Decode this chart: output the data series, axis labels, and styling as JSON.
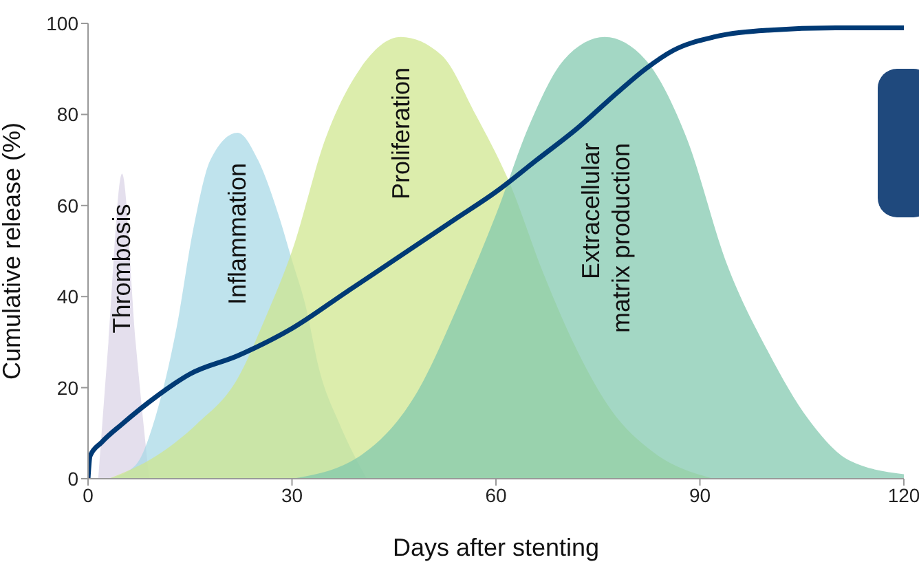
{
  "chart_data": {
    "type": "area",
    "xlabel": "Days after stenting",
    "ylabel": "Cumulative release (%)",
    "xlim": [
      0,
      120
    ],
    "xticks": [
      0,
      30,
      60,
      90,
      120
    ],
    "ylim": [
      0,
      100
    ],
    "yticks": [
      0,
      20,
      40,
      60,
      80,
      100
    ],
    "series": [
      {
        "name": "Thrombosis",
        "color": "#d9d3e6",
        "x": [
          1.5,
          3,
          5,
          7,
          9
        ],
        "values": [
          0,
          30,
          67,
          30,
          0
        ]
      },
      {
        "name": "Inflammation",
        "color": "#a6d8e6",
        "x": [
          3,
          7,
          10,
          13,
          15.5,
          18,
          22,
          25,
          28,
          30,
          32,
          34,
          37,
          41
        ],
        "values": [
          0,
          3,
          14,
          33,
          55,
          70,
          76,
          70,
          58,
          48,
          38,
          24,
          12,
          0
        ]
      },
      {
        "name": "Proliferation",
        "color": "#cfe68c",
        "x": [
          3,
          10,
          16,
          22,
          26,
          30,
          35,
          40,
          46,
          52,
          57,
          62,
          67,
          72,
          77,
          83,
          92
        ],
        "values": [
          0,
          5,
          12,
          22,
          35,
          50,
          75,
          90,
          97,
          93,
          80,
          65,
          45,
          28,
          15,
          6,
          0
        ]
      },
      {
        "name": "Extracellular matrix production",
        "color": "#7fc8ad",
        "x": [
          30,
          40,
          48,
          55,
          60,
          65,
          70,
          76,
          82,
          88,
          94,
          100,
          106,
          112,
          120
        ],
        "values": [
          0,
          5,
          18,
          40,
          58,
          78,
          92,
          97,
          92,
          75,
          47,
          28,
          13,
          4,
          1
        ]
      },
      {
        "type": "line",
        "color": "#003a75",
        "x": [
          0,
          0.3,
          2,
          5,
          10,
          15,
          22,
          30,
          38,
          46,
          54,
          60,
          66,
          72,
          78,
          82,
          86,
          92,
          100,
          110,
          120
        ],
        "values": [
          0,
          5,
          8,
          12,
          18,
          23,
          27,
          33,
          41,
          49,
          57,
          63,
          70,
          77,
          85,
          90,
          94,
          97,
          98.5,
          99,
          99
        ]
      }
    ]
  }
}
